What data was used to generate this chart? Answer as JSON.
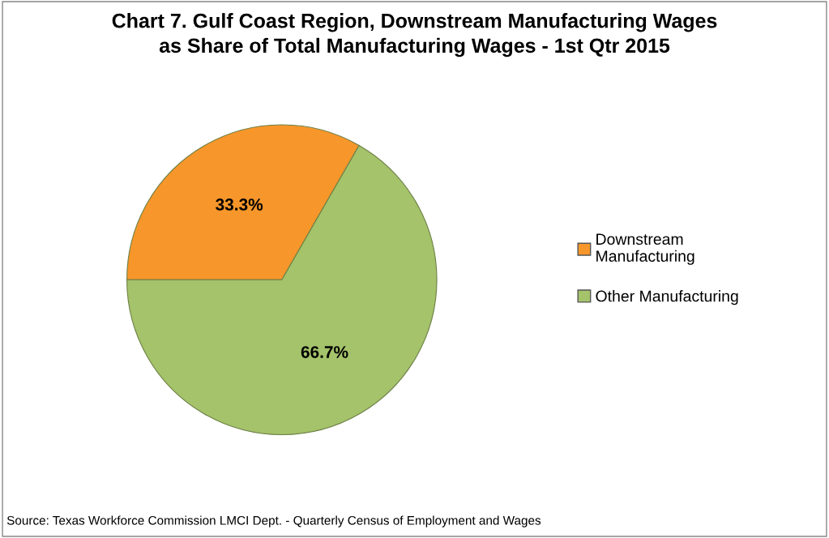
{
  "chart_data": {
    "type": "pie",
    "title": "Chart 7. Gulf Coast Region, Downstream Manufacturing Wages\nas Share of Total Manufacturing Wages - 1st Qtr 2015",
    "categories": [
      "Downstream\nManufacturing",
      "Other Manufacturing"
    ],
    "values": [
      33.3,
      66.7
    ],
    "colors": [
      "#f7962a",
      "#a4c36a"
    ],
    "value_labels": [
      "33.3%",
      "66.7%"
    ],
    "legend": "right",
    "annotations": [
      "Source: Texas Workforce Commission LMCI Dept. - Quarterly Census of Employment and Wages"
    ]
  }
}
